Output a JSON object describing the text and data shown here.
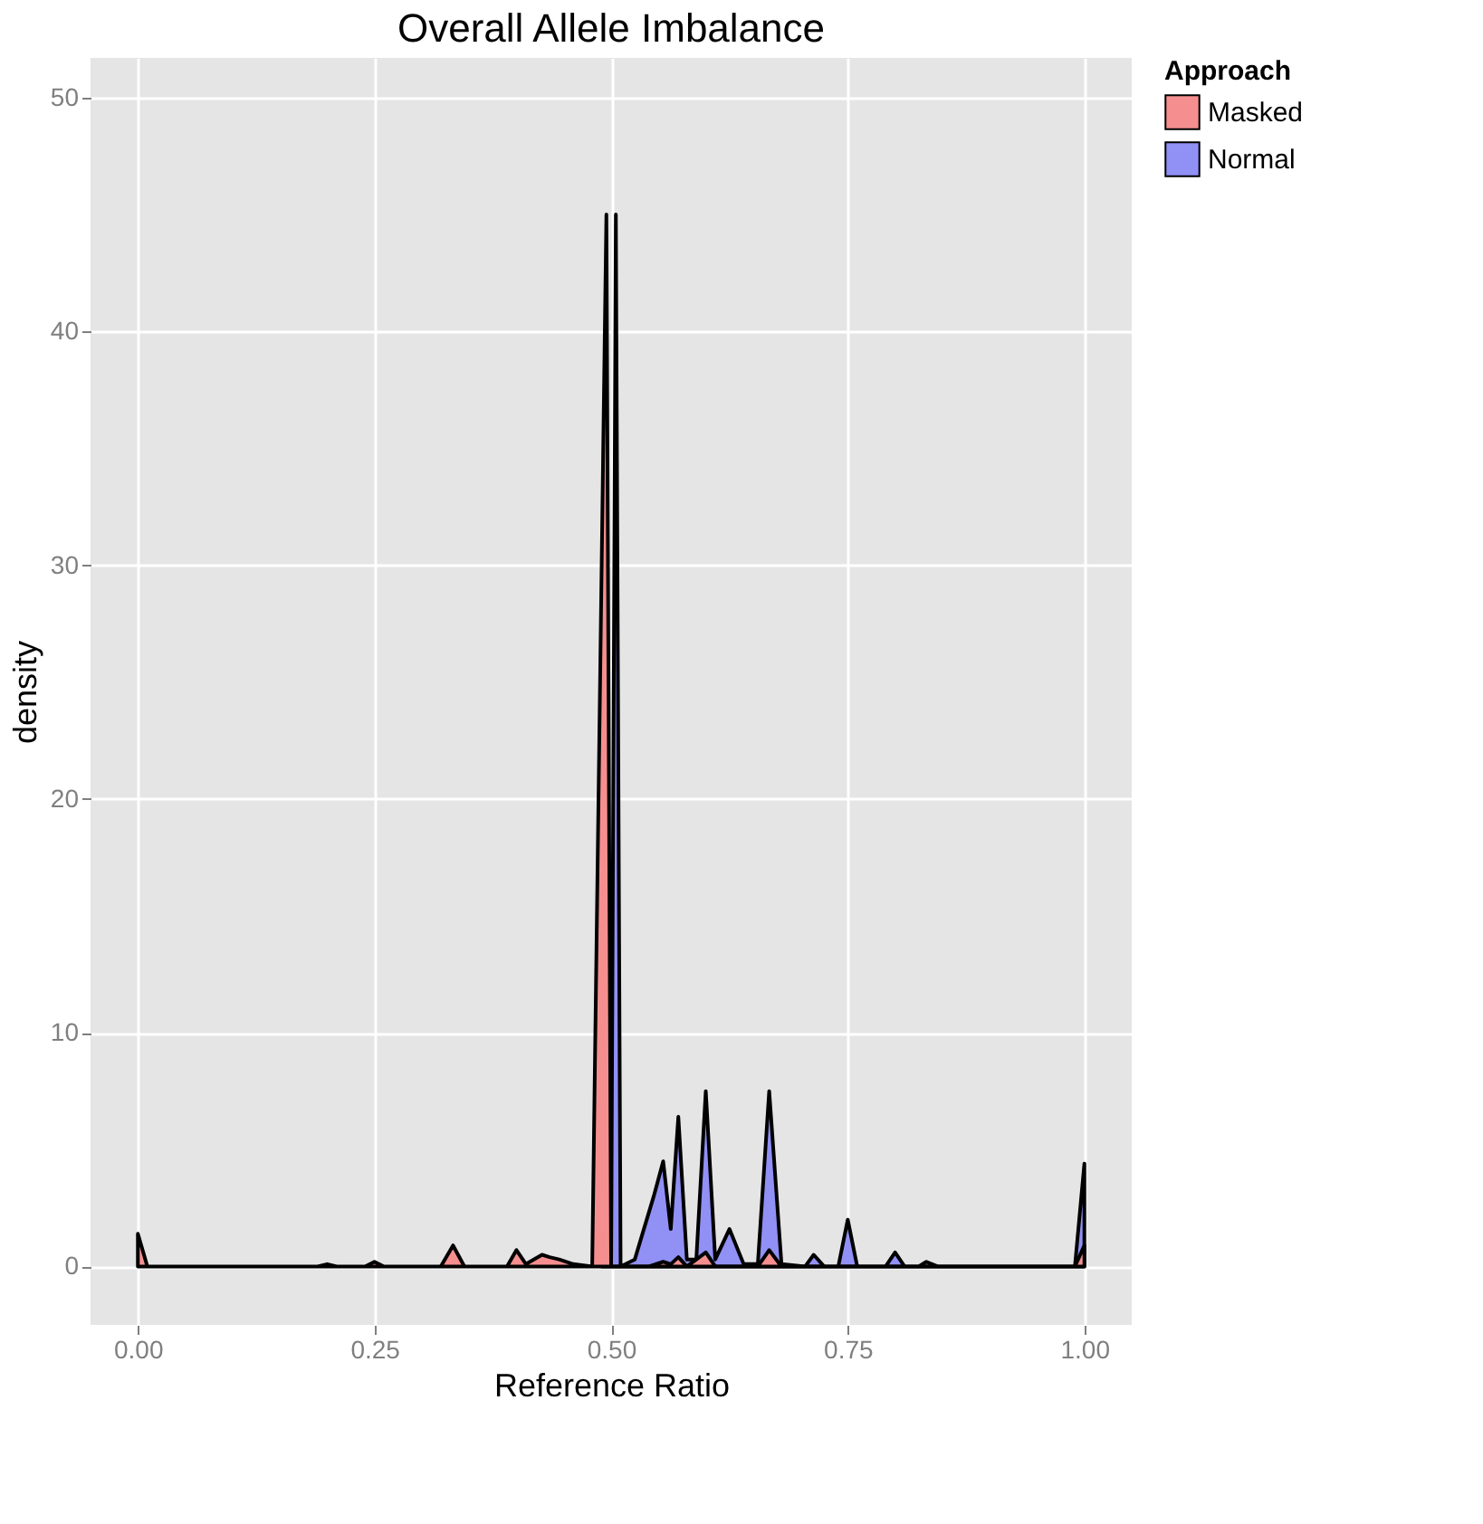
{
  "chart_data": {
    "type": "area",
    "title": "Overall Allele Imbalance",
    "xlabel": "Reference Ratio",
    "ylabel": "density",
    "legend_title": "Approach",
    "legend": "right",
    "grid": true,
    "xlim": [
      -0.05,
      1.05
    ],
    "xticks": [
      {
        "value": 0,
        "label": "0.00"
      },
      {
        "value": 0.25,
        "label": "0.25"
      },
      {
        "value": 0.5,
        "label": "0.50"
      },
      {
        "value": 0.75,
        "label": "0.75"
      },
      {
        "value": 1,
        "label": "1.00"
      }
    ],
    "ylim": [
      -2.5,
      51.7
    ],
    "yticks": [
      0,
      10,
      20,
      30,
      40,
      50
    ],
    "series": [
      {
        "name": "Masked",
        "color": "#f58f8f",
        "x": [
          0,
          0.01,
          0.19,
          0.2,
          0.21,
          0.24,
          0.25,
          0.26,
          0.32,
          0.333,
          0.345,
          0.39,
          0.4,
          0.41,
          0.427,
          0.435,
          0.445,
          0.46,
          0.48,
          0.495,
          0.5,
          0.54,
          0.555,
          0.563,
          0.571,
          0.58,
          0.6,
          0.61,
          0.655,
          0.667,
          0.68,
          0.99,
          1.0
        ],
        "values": [
          1.4,
          0,
          0,
          0.1,
          0,
          0,
          0.2,
          0,
          0,
          0.9,
          0,
          0,
          0.7,
          0.1,
          0.5,
          0.4,
          0.3,
          0.1,
          0,
          45,
          0,
          0,
          0.2,
          0.1,
          0.4,
          0,
          0.6,
          0,
          0,
          0.7,
          0,
          0,
          0.9
        ]
      },
      {
        "name": "Normal",
        "color": "#9090f5",
        "x": [
          0.49,
          0.5,
          0.505,
          0.51,
          0.525,
          0.545,
          0.555,
          0.563,
          0.571,
          0.58,
          0.59,
          0.6,
          0.61,
          0.625,
          0.64,
          0.655,
          0.667,
          0.68,
          0.705,
          0.714,
          0.725,
          0.74,
          0.75,
          0.76,
          0.79,
          0.8,
          0.81,
          0.825,
          0.833,
          0.845,
          0.99,
          1.0
        ],
        "values": [
          0,
          0,
          45,
          0,
          0.3,
          3.0,
          4.5,
          1.6,
          6.4,
          0.3,
          0.3,
          7.5,
          0.3,
          1.6,
          0.1,
          0.1,
          7.5,
          0.1,
          0,
          0.5,
          0,
          0,
          2.0,
          0,
          0,
          0.6,
          0,
          0,
          0.2,
          0,
          0,
          4.4
        ]
      }
    ]
  }
}
